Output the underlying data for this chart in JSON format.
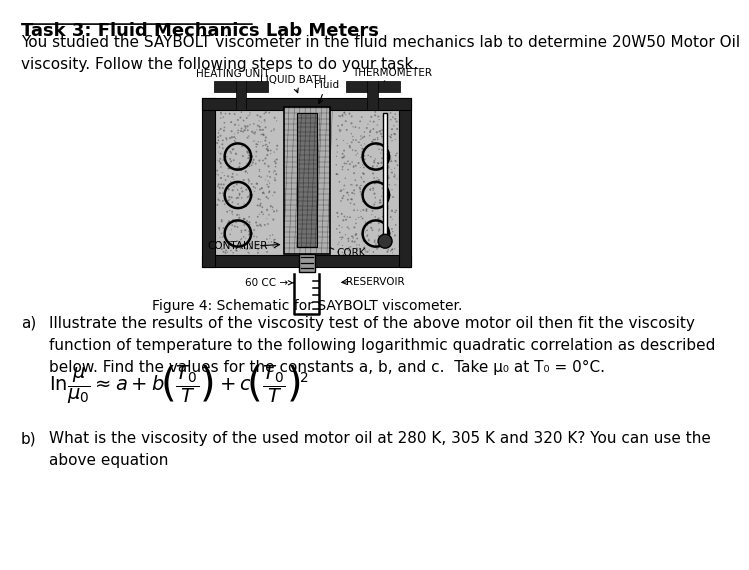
{
  "title": "Task 3: Fluid Mechanics Lab Meters",
  "intro_text": "You studied the SAYBOLT viscometer in the fluid mechanics lab to determine 20W50 Motor Oil\nviscosity. Follow the following steps to do your task.",
  "figure_caption": "Figure 4: Schematic for SAYBOLT viscometer.",
  "part_a_label": "a)",
  "part_a_text": "Illustrate the results of the viscosity test of the above motor oil then fit the viscosity\nfunction of temperature to the following logarithmic quadratic correlation as described\nbelow. Find the values for the constants a, b, and c.  Take μ₀ at T₀ = 0°C.",
  "part_b_label": "b)",
  "part_b_text": "What is the viscosity of the used motor oil at 280 K, 305 K and 320 K? You can use the\nabove equation",
  "bg_color": "#ffffff",
  "text_color": "#000000",
  "font_size_title": 13,
  "font_size_body": 11,
  "font_size_label": 11
}
